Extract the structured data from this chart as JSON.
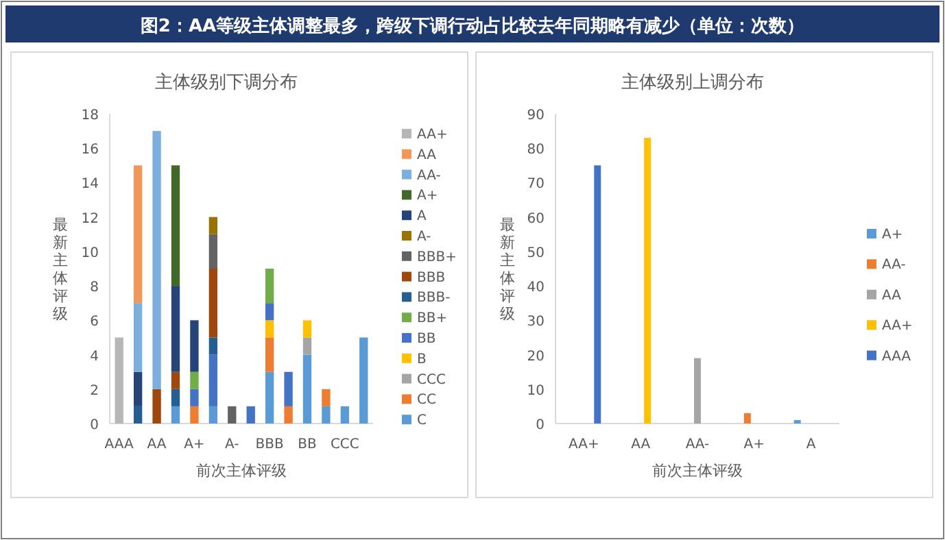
{
  "chart_data": [
    {
      "type": "bar",
      "title": "主体级别下调分布",
      "xlabel": "前次主体评级",
      "ylabel": "最新主体评级",
      "annotations": [
        "图2：AA等级主体调整最多，跨级下调行动占比较去年同期略有减少（单位：次数）"
      ],
      "categories": [
        "AAA",
        null,
        "AA",
        null,
        "A+",
        null,
        "A-",
        null,
        "BBB",
        null,
        "BB",
        null,
        "CCC",
        null
      ],
      "stacked": true,
      "ylim": [
        0,
        18
      ],
      "yticks": [
        0,
        2,
        4,
        6,
        8,
        10,
        12,
        14,
        16,
        18
      ],
      "legend": "right",
      "series": [
        {
          "name": "C",
          "color": "#5b9bd5",
          "values": [
            null,
            null,
            null,
            1,
            null,
            1,
            null,
            null,
            3,
            null,
            4,
            1,
            1,
            5
          ]
        },
        {
          "name": "CC",
          "color": "#ed7d31",
          "values": [
            null,
            null,
            null,
            null,
            1,
            null,
            null,
            null,
            2,
            1,
            null,
            1,
            null,
            null
          ]
        },
        {
          "name": "CCC",
          "color": "#a5a5a5",
          "values": [
            null,
            null,
            null,
            null,
            null,
            null,
            null,
            null,
            null,
            null,
            1,
            null,
            null,
            null
          ]
        },
        {
          "name": "B",
          "color": "#ffc000",
          "values": [
            null,
            null,
            null,
            null,
            null,
            null,
            null,
            null,
            1,
            null,
            1,
            null,
            null,
            null
          ]
        },
        {
          "name": "BB",
          "color": "#4472c4",
          "values": [
            null,
            null,
            null,
            null,
            1,
            3,
            null,
            1,
            1,
            2,
            null,
            null,
            null,
            null
          ]
        },
        {
          "name": "BB+",
          "color": "#70ad47",
          "values": [
            null,
            null,
            null,
            null,
            1,
            null,
            null,
            null,
            2,
            null,
            null,
            null,
            null,
            null
          ]
        },
        {
          "name": "BBB-",
          "color": "#255e91",
          "values": [
            null,
            1,
            null,
            1,
            null,
            1,
            null,
            null,
            null,
            null,
            null,
            null,
            null,
            null
          ]
        },
        {
          "name": "BBB",
          "color": "#9e480e",
          "values": [
            null,
            null,
            2,
            1,
            null,
            4,
            null,
            null,
            null,
            null,
            null,
            null,
            null,
            null
          ]
        },
        {
          "name": "BBB+",
          "color": "#636363",
          "values": [
            null,
            null,
            null,
            null,
            null,
            2,
            1,
            null,
            null,
            null,
            null,
            null,
            null,
            null
          ]
        },
        {
          "name": "A-",
          "color": "#997300",
          "values": [
            null,
            null,
            null,
            null,
            null,
            1,
            null,
            null,
            null,
            null,
            null,
            null,
            null,
            null
          ]
        },
        {
          "name": "A",
          "color": "#264478",
          "values": [
            null,
            2,
            null,
            5,
            3,
            null,
            null,
            null,
            null,
            null,
            null,
            null,
            null,
            null
          ]
        },
        {
          "name": "A+",
          "color": "#43682b",
          "values": [
            null,
            null,
            null,
            7,
            null,
            null,
            null,
            null,
            null,
            null,
            null,
            null,
            null,
            null
          ]
        },
        {
          "name": "AA-",
          "color": "#7cafdd",
          "values": [
            null,
            4,
            15,
            null,
            null,
            null,
            null,
            null,
            null,
            null,
            null,
            null,
            null,
            null
          ]
        },
        {
          "name": "AA",
          "color": "#f1975a",
          "values": [
            null,
            8,
            null,
            null,
            null,
            null,
            null,
            null,
            null,
            null,
            null,
            null,
            null,
            null
          ]
        },
        {
          "name": "AA+",
          "color": "#b7b7b7",
          "values": [
            5,
            null,
            null,
            null,
            null,
            null,
            null,
            null,
            null,
            null,
            null,
            null,
            null,
            null
          ]
        }
      ]
    },
    {
      "type": "bar",
      "title": "主体级别上调分布",
      "xlabel": "前次主体评级",
      "ylabel": "最新主体评级",
      "categories": [
        "AA+",
        "AA",
        "AA-",
        "A+",
        "A"
      ],
      "ylim": [
        0,
        90
      ],
      "yticks": [
        0,
        10,
        20,
        30,
        40,
        50,
        60,
        70,
        80,
        90
      ],
      "legend": "right",
      "series": [
        {
          "name": "A+",
          "color": "#5b9bd5",
          "values": [
            null,
            null,
            null,
            null,
            1
          ]
        },
        {
          "name": "AA-",
          "color": "#ed7d31",
          "values": [
            null,
            null,
            null,
            3,
            null
          ]
        },
        {
          "name": "AA",
          "color": "#a5a5a5",
          "values": [
            null,
            null,
            19,
            null,
            null
          ]
        },
        {
          "name": "AA+",
          "color": "#ffc000",
          "values": [
            null,
            83,
            null,
            null,
            null
          ]
        },
        {
          "name": "AAA",
          "color": "#4472c4",
          "values": [
            75,
            null,
            null,
            null,
            null
          ]
        }
      ]
    }
  ]
}
